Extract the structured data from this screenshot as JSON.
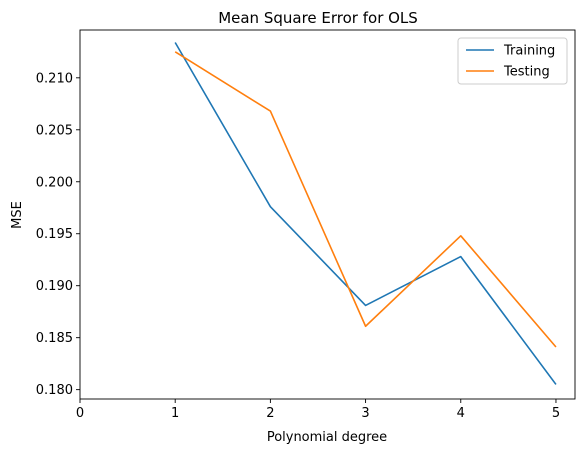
{
  "chart_data": {
    "type": "line",
    "title": "Mean Square Error for OLS",
    "xlabel": "Polynomial degree",
    "ylabel": "MSE",
    "x": [
      1,
      2,
      3,
      4,
      5
    ],
    "xlim": [
      0,
      5.2
    ],
    "ylim": [
      0.1791,
      0.2146
    ],
    "xticks": [
      0,
      1,
      2,
      3,
      4,
      5
    ],
    "yticks": [
      0.18,
      0.185,
      0.19,
      0.195,
      0.2,
      0.205,
      0.21
    ],
    "ytick_labels": [
      "0.180",
      "0.185",
      "0.190",
      "0.195",
      "0.200",
      "0.205",
      "0.210"
    ],
    "series": [
      {
        "name": "Training",
        "color": "#1f77b4",
        "values": [
          0.2134,
          0.1976,
          0.1881,
          0.1928,
          0.1805
        ]
      },
      {
        "name": "Testing",
        "color": "#ff7f0e",
        "values": [
          0.2125,
          0.2068,
          0.1861,
          0.1948,
          0.1841
        ]
      }
    ],
    "legend": "top-right",
    "grid": false
  }
}
